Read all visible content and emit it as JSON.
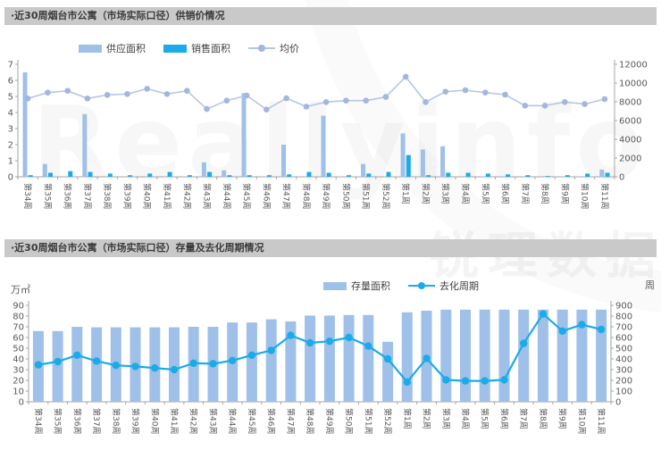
{
  "watermark": {
    "brand_en": "Reallyinfo",
    "brand_cn": "锐理数据"
  },
  "colors": {
    "title_bar_bg": "#c9c9c9",
    "supply_bar": "#9fc0e8",
    "sales_bar": "#1aabe8",
    "price_line": "#b7c6e5",
    "price_marker": "#a3b6de",
    "inventory_bar": "#9fc0e8",
    "cycle_line": "#1aabe8",
    "axis_text": "#595959",
    "axis_line": "#a6a6a6"
  },
  "chart_data": [
    {
      "type": "bar",
      "title": "·近30周烟台市公寓（市场实际口径）供销价情况",
      "legend_position": "top-left",
      "grid": "off",
      "categories": [
        "第34周",
        "第35周",
        "第36周",
        "第37周",
        "第38周",
        "第39周",
        "第40周",
        "第41周",
        "第42周",
        "第43周",
        "第44周",
        "第45周",
        "第46周",
        "第47周",
        "第48周",
        "第49周",
        "第50周",
        "第51周",
        "第52周",
        "第1周",
        "第2周",
        "第3周",
        "第4周",
        "第5周",
        "第6周",
        "第7周",
        "第8周",
        "第9周",
        "第10周",
        "第11周"
      ],
      "left_axis": {
        "min": 0,
        "max": 7,
        "ticks": [
          0,
          1,
          2,
          3,
          4,
          5,
          6,
          7
        ]
      },
      "right_axis": {
        "min": 0,
        "max": 12000,
        "ticks": [
          0,
          2000,
          4000,
          6000,
          8000,
          10000,
          12000
        ]
      },
      "series": [
        {
          "name": "供应面积",
          "type": "bar",
          "axis": "left",
          "color": "#9fc0e8",
          "values": [
            6.5,
            0.8,
            0,
            3.9,
            0,
            0,
            0,
            0,
            0,
            0.9,
            0.4,
            5.2,
            0,
            2.0,
            0,
            3.8,
            0,
            0.8,
            0,
            2.7,
            1.7,
            1.9,
            0,
            0,
            0,
            0,
            0,
            0,
            0,
            0.45
          ]
        },
        {
          "name": "销售面积",
          "type": "bar",
          "axis": "left",
          "color": "#1aabe8",
          "values": [
            0.1,
            0.25,
            0.35,
            0.3,
            0.2,
            0.1,
            0.2,
            0.3,
            0.1,
            0.3,
            0.1,
            0.1,
            0.1,
            0.15,
            0.3,
            0.25,
            0.1,
            0.2,
            0.3,
            1.35,
            0.1,
            0.25,
            0.25,
            0.2,
            0.15,
            0.1,
            0.05,
            0.1,
            0.2,
            0.25
          ]
        },
        {
          "name": "均价",
          "type": "line",
          "axis": "right",
          "color": "#b7c6e5",
          "marker_color": "#a3b6de",
          "values": [
            8350,
            8980,
            9170,
            8350,
            8730,
            8830,
            9390,
            8830,
            9170,
            7230,
            8120,
            8670,
            7170,
            8380,
            7490,
            7970,
            8120,
            8120,
            8510,
            10670,
            7970,
            9080,
            9240,
            8980,
            8760,
            7590,
            7590,
            7970,
            7750,
            8290
          ]
        }
      ]
    },
    {
      "type": "bar",
      "title": "·近30周烟台市公寓（市场实际口径）存量及去化周期情况",
      "legend_position": "top-center",
      "grid": "off",
      "left_unit": "万㎡",
      "right_unit": "周",
      "categories": [
        "第34周",
        "第35周",
        "第36周",
        "第37周",
        "第38周",
        "第39周",
        "第40周",
        "第41周",
        "第42周",
        "第43周",
        "第44周",
        "第45周",
        "第46周",
        "第47周",
        "第48周",
        "第49周",
        "第50周",
        "第51周",
        "第52周",
        "第1周",
        "第2周",
        "第3周",
        "第4周",
        "第5周",
        "第6周",
        "第7周",
        "第8周",
        "第9周",
        "第10周",
        "第11周"
      ],
      "left_axis": {
        "min": 0,
        "max": 90,
        "ticks": [
          0,
          10,
          20,
          30,
          40,
          50,
          60,
          70,
          80,
          90
        ]
      },
      "right_axis": {
        "min": 0,
        "max": 900,
        "ticks": [
          0,
          100,
          200,
          300,
          400,
          500,
          600,
          700,
          800,
          900
        ]
      },
      "series": [
        {
          "name": "存量面积",
          "type": "bar",
          "axis": "left",
          "color": "#9fc0e8",
          "values": [
            66,
            66,
            70,
            69.5,
            69.5,
            69.5,
            69.5,
            69.5,
            70,
            70,
            74,
            74,
            77,
            75,
            80.5,
            80.5,
            81,
            81,
            56,
            83.5,
            85,
            86,
            86,
            86,
            86,
            86,
            86,
            86,
            86,
            86
          ]
        },
        {
          "name": "去化周期",
          "type": "line",
          "axis": "right",
          "color": "#1aabe8",
          "marker_color": "#1aabe8",
          "values": [
            345,
            375,
            435,
            380,
            340,
            330,
            315,
            300,
            360,
            355,
            385,
            435,
            480,
            620,
            550,
            565,
            600,
            520,
            400,
            185,
            405,
            205,
            195,
            195,
            205,
            545,
            820,
            660,
            720,
            675
          ]
        }
      ]
    }
  ]
}
